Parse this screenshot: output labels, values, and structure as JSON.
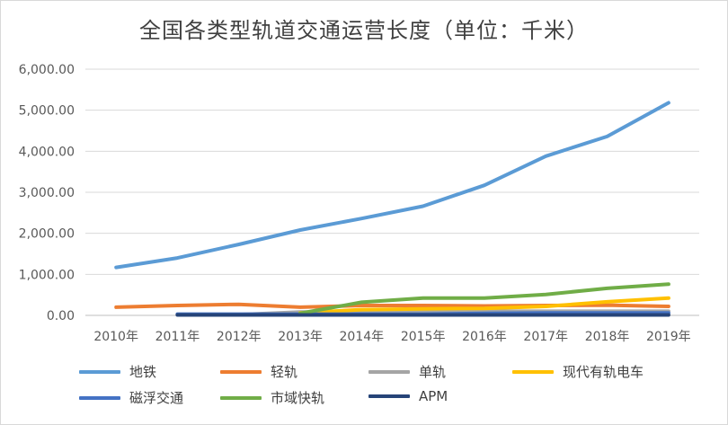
{
  "chart_data": {
    "type": "line",
    "title": "全国各类型轨道交通运营长度（单位：千米）",
    "xlabel": "",
    "ylabel": "",
    "categories": [
      "2010年",
      "2011年",
      "2012年",
      "2013年",
      "2014年",
      "2015年",
      "2016年",
      "2017年",
      "2018年",
      "2019年"
    ],
    "ylim": [
      0,
      6000
    ],
    "yticks": [
      "0.00",
      "1,000.00",
      "2,000.00",
      "3,000.00",
      "4,000.00",
      "5,000.00",
      "6,000.00"
    ],
    "grid": true,
    "legend": "bottom",
    "series": [
      {
        "name": "地铁",
        "color": "#5b9bd5",
        "values": [
          1170,
          1400,
          1730,
          2080,
          2360,
          2660,
          3170,
          3880,
          4360,
          5180
        ]
      },
      {
        "name": "轻轨",
        "color": "#ed7d31",
        "values": [
          200,
          240,
          270,
          200,
          240,
          240,
          230,
          240,
          250,
          220
        ]
      },
      {
        "name": "单轨",
        "color": "#a5a5a5",
        "values": [
          null,
          20,
          20,
          80,
          90,
          100,
          100,
          100,
          100,
          100
        ]
      },
      {
        "name": "现代有轨电车",
        "color": "#ffc000",
        "values": [
          null,
          null,
          null,
          60,
          140,
          160,
          170,
          220,
          330,
          420
        ]
      },
      {
        "name": "磁浮交通",
        "color": "#4472c4",
        "values": [
          null,
          30,
          30,
          30,
          30,
          30,
          50,
          60,
          60,
          60
        ]
      },
      {
        "name": "市域快轨",
        "color": "#70ad47",
        "values": [
          null,
          null,
          null,
          50,
          320,
          420,
          420,
          510,
          660,
          760
        ]
      },
      {
        "name": "APM",
        "color": "#264478",
        "values": [
          null,
          10,
          10,
          10,
          10,
          10,
          10,
          10,
          10,
          10
        ]
      }
    ]
  }
}
